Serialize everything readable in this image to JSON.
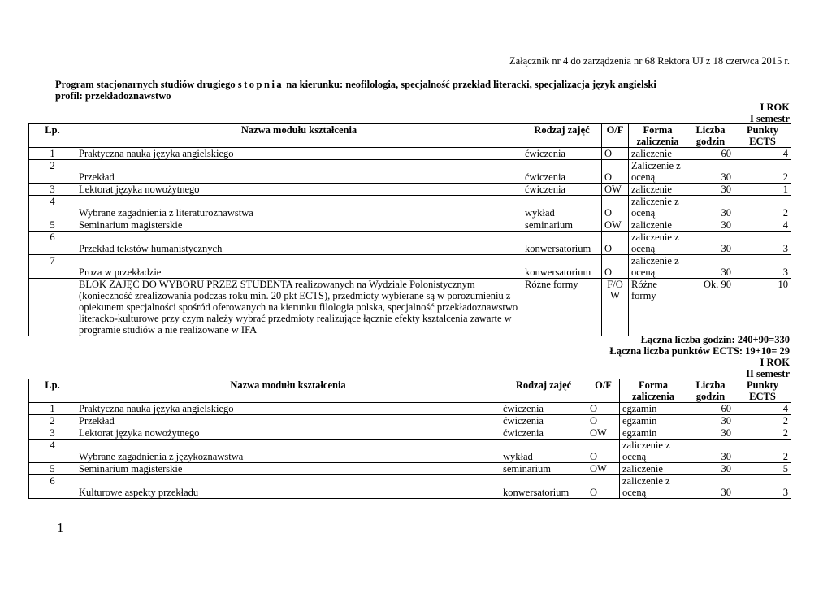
{
  "header": {
    "annex": "Załącznik nr 4 do zarządzenia nr 68 Rektora UJ z 18 czerwca 2015 r.",
    "title_a": "Program stacjonarnych studiów drugiego ",
    "title_b": "stopnia",
    "title_c": " na kierunku: neofilologia, specjalność przekład literacki, specjalizacja język angielski",
    "profile": "profil: przekładoznawstwo"
  },
  "columns": [
    "Lp.",
    "Nazwa modułu kształcenia",
    "Rodzaj zajęć",
    "O/F",
    "Forma zaliczenia",
    "Liczba godzin",
    "Punkty ECTS"
  ],
  "sem1": {
    "year": "I ROK",
    "semester": "I semestr",
    "rows": [
      [
        "1",
        "Praktyczna nauka języka angielskiego",
        "ćwiczenia",
        "O",
        "zaliczenie",
        "60",
        "4"
      ],
      [
        "2",
        "Przekład",
        "ćwiczenia",
        "O",
        "Zaliczenie z oceną",
        "30",
        "2"
      ],
      [
        "3",
        "Lektorat języka nowożytnego",
        "ćwiczenia",
        "OW",
        "zaliczenie",
        "30",
        "1"
      ],
      [
        "4",
        "Wybrane zagadnienia z literaturoznawstwa",
        "wykład",
        "O",
        "zaliczenie z oceną",
        "30",
        "2"
      ],
      [
        "5",
        "Seminarium magisterskie",
        "seminarium",
        "OW",
        "zaliczenie",
        "30",
        "4"
      ],
      [
        "6",
        "Przekład tekstów humanistycznych",
        "konwersatorium",
        "O",
        "zaliczenie z oceną",
        "30",
        "3"
      ],
      [
        "7",
        "Proza w przekładzie",
        "konwersatorium",
        "O",
        "zaliczenie z oceną",
        "30",
        "3"
      ]
    ],
    "block": [
      "",
      "BLOK ZAJĘĆ DO WYBORU PRZEZ STUDENTA realizowanych na Wydziale Polonistycznym (konieczność zrealizowania podczas roku min. 20 pkt ECTS), przedmioty wybierane są w porozumieniu z opiekunem specjalności spośród oferowanych na kierunku  filologia polska, specjalność przekładoznawstwo literacko-kulturowe przy czym należy wybrać  przedmioty  realizujące łącznie efekty kształcenia zawarte w programie studiów a nie realizowane w IFA",
      "Różne formy",
      "F/O W",
      "Różne formy",
      "Ok. 90",
      "10"
    ],
    "total_hours": "Łączna liczba godzin: 240+90=330",
    "total_ects": "Łączna liczba punktów ECTS: 19+10= 29"
  },
  "sem2": {
    "year": "I ROK",
    "semester": "II semestr",
    "rows": [
      [
        "1",
        "Praktyczna nauka języka angielskiego",
        "ćwiczenia",
        "O",
        "egzamin",
        "60",
        "4"
      ],
      [
        "2",
        "Przekład",
        "ćwiczenia",
        "O",
        "egzamin",
        "30",
        "2"
      ],
      [
        "3",
        "Lektorat języka nowożytnego",
        "ćwiczenia",
        "OW",
        "egzamin",
        "30",
        "2"
      ],
      [
        "4",
        "Wybrane zagadnienia z językoznawstwa",
        "wykład",
        "O",
        "zaliczenie  z oceną",
        "30",
        "2"
      ],
      [
        "5",
        "Seminarium magisterskie",
        "seminarium",
        "OW",
        "zaliczenie",
        "30",
        "5"
      ],
      [
        "6",
        "Kulturowe aspekty przekładu",
        "konwersatorium",
        "O",
        "zaliczenie z oceną",
        "30",
        "3"
      ]
    ]
  },
  "page_number": "1"
}
